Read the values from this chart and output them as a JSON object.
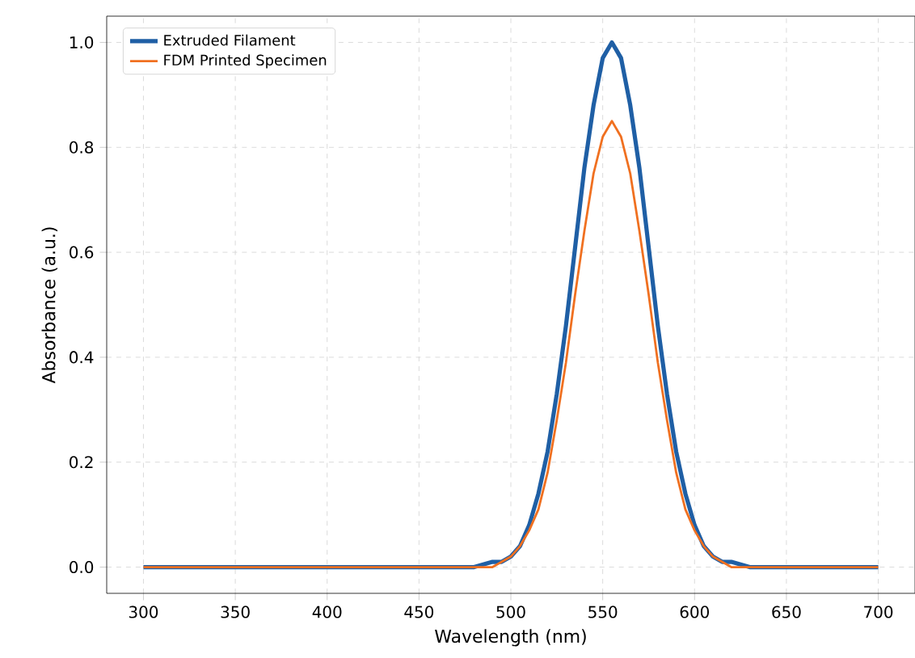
{
  "chart_data": {
    "type": "line",
    "xlabel": "Wavelength (nm)",
    "ylabel": "Absorbance (a.u.)",
    "x": [
      300,
      480,
      490,
      495,
      500,
      505,
      510,
      515,
      520,
      525,
      530,
      535,
      540,
      545,
      550,
      555,
      560,
      565,
      570,
      575,
      580,
      585,
      590,
      595,
      600,
      605,
      610,
      615,
      620,
      630,
      700
    ],
    "series": [
      {
        "name": "Extruded Filament",
        "color": "#1f5fa5",
        "values": [
          0,
          0,
          0.01,
          0.01,
          0.02,
          0.04,
          0.08,
          0.14,
          0.22,
          0.33,
          0.46,
          0.61,
          0.76,
          0.88,
          0.97,
          1.0,
          0.97,
          0.88,
          0.76,
          0.61,
          0.46,
          0.33,
          0.22,
          0.14,
          0.08,
          0.04,
          0.02,
          0.01,
          0.01,
          0,
          0
        ]
      },
      {
        "name": "FDM Printed Specimen",
        "color": "#f07020",
        "values": [
          0,
          0,
          0,
          0.01,
          0.02,
          0.04,
          0.07,
          0.11,
          0.18,
          0.28,
          0.39,
          0.52,
          0.64,
          0.75,
          0.82,
          0.85,
          0.82,
          0.75,
          0.64,
          0.52,
          0.39,
          0.28,
          0.18,
          0.11,
          0.07,
          0.04,
          0.02,
          0.01,
          0,
          0,
          0
        ]
      }
    ],
    "xlim": [
      280,
      720
    ],
    "ylim": [
      -0.05,
      1.05
    ],
    "xticks": [
      300,
      350,
      400,
      450,
      500,
      550,
      600,
      650,
      700
    ],
    "yticks": [
      {
        "value": 0,
        "label": "0.0"
      },
      {
        "value": 0.2,
        "label": "0.2"
      },
      {
        "value": 0.4,
        "label": "0.4"
      },
      {
        "value": 0.6,
        "label": "0.6"
      },
      {
        "value": 0.8,
        "label": "0.8"
      },
      {
        "value": 1.0,
        "label": "1.0"
      }
    ],
    "grid": true,
    "legend": "top left",
    "marker": "none",
    "line_style": "solid"
  }
}
